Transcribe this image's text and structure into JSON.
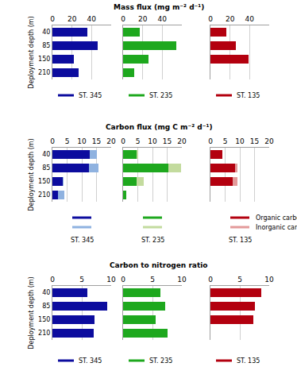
{
  "chart_data": [
    {
      "type": "bar",
      "title": "Mass flux (mg m⁻² d⁻¹)",
      "ylabel": "Deployment depth (m)",
      "orientation": "horizontal",
      "grid": true,
      "legend": "bottom",
      "categories": [
        "40",
        "85",
        "150",
        "210"
      ],
      "xlim": [
        0,
        60
      ],
      "xticks": [
        0,
        20,
        40
      ],
      "series": [
        {
          "name": "ST. 345",
          "color": "#0c0c9e",
          "values": [
            36,
            46,
            22,
            27
          ]
        },
        {
          "name": "ST. 235",
          "color": "#1ea81e",
          "values": [
            17,
            54,
            26,
            11
          ]
        },
        {
          "name": "ST. 135",
          "color": "#b3000f",
          "values": [
            16,
            26,
            39,
            null
          ]
        }
      ]
    },
    {
      "type": "bar",
      "title": "Carbon flux (mg C m⁻² d⁻¹)",
      "ylabel": "Deployment depth (m)",
      "orientation": "horizontal",
      "grid": true,
      "legend": "bottom",
      "stacked": true,
      "categories": [
        "40",
        "85",
        "150",
        "210"
      ],
      "xlim": [
        0,
        20
      ],
      "xticks": [
        0,
        5,
        10,
        15,
        20
      ],
      "panels": [
        {
          "name": "ST. 345",
          "series": [
            {
              "name": "Organic carbon",
              "color": "#0c0c9e",
              "values": [
                12.6,
                12.3,
                3.5,
                1.8
              ]
            },
            {
              "name": "Inorganic carbon",
              "color": "#8fb2e0",
              "values": [
                2.5,
                3.5,
                0.3,
                2.3
              ]
            }
          ]
        },
        {
          "name": "ST. 235",
          "series": [
            {
              "name": "Organic carbon",
              "color": "#1ea81e",
              "values": [
                4.6,
                15.3,
                4.5,
                1.2
              ]
            },
            {
              "name": "Inorganic carbon",
              "color": "#c3db9e",
              "values": [
                0.6,
                4.5,
                2.5,
                0
              ]
            }
          ]
        },
        {
          "name": "ST. 135",
          "series": [
            {
              "name": "Organic carbon",
              "color": "#b3000f",
              "values": [
                4,
                8.5,
                7.7,
                null
              ]
            },
            {
              "name": "Inorganic carbon",
              "color": "#e39a9a",
              "values": [
                0,
                0.6,
                1.5,
                null
              ]
            }
          ]
        }
      ]
    },
    {
      "type": "bar",
      "title": "Carbon to nitrogen ratio",
      "ylabel": "Deployment depth (m)",
      "orientation": "horizontal",
      "grid": true,
      "legend": "bottom",
      "categories": [
        "40",
        "85",
        "150",
        "210"
      ],
      "xlim": [
        0,
        10
      ],
      "xticks": [
        0,
        5,
        10
      ],
      "series": [
        {
          "name": "ST. 345",
          "color": "#0c0c9e",
          "values": [
            5.9,
            9.3,
            7.2,
            7.0
          ]
        },
        {
          "name": "ST. 235",
          "color": "#1ea81e",
          "values": [
            6.3,
            7.2,
            5.5,
            7.5
          ]
        },
        {
          "name": "ST. 135",
          "color": "#b3000f",
          "values": [
            8.6,
            7.5,
            7.3,
            null
          ]
        }
      ]
    }
  ]
}
